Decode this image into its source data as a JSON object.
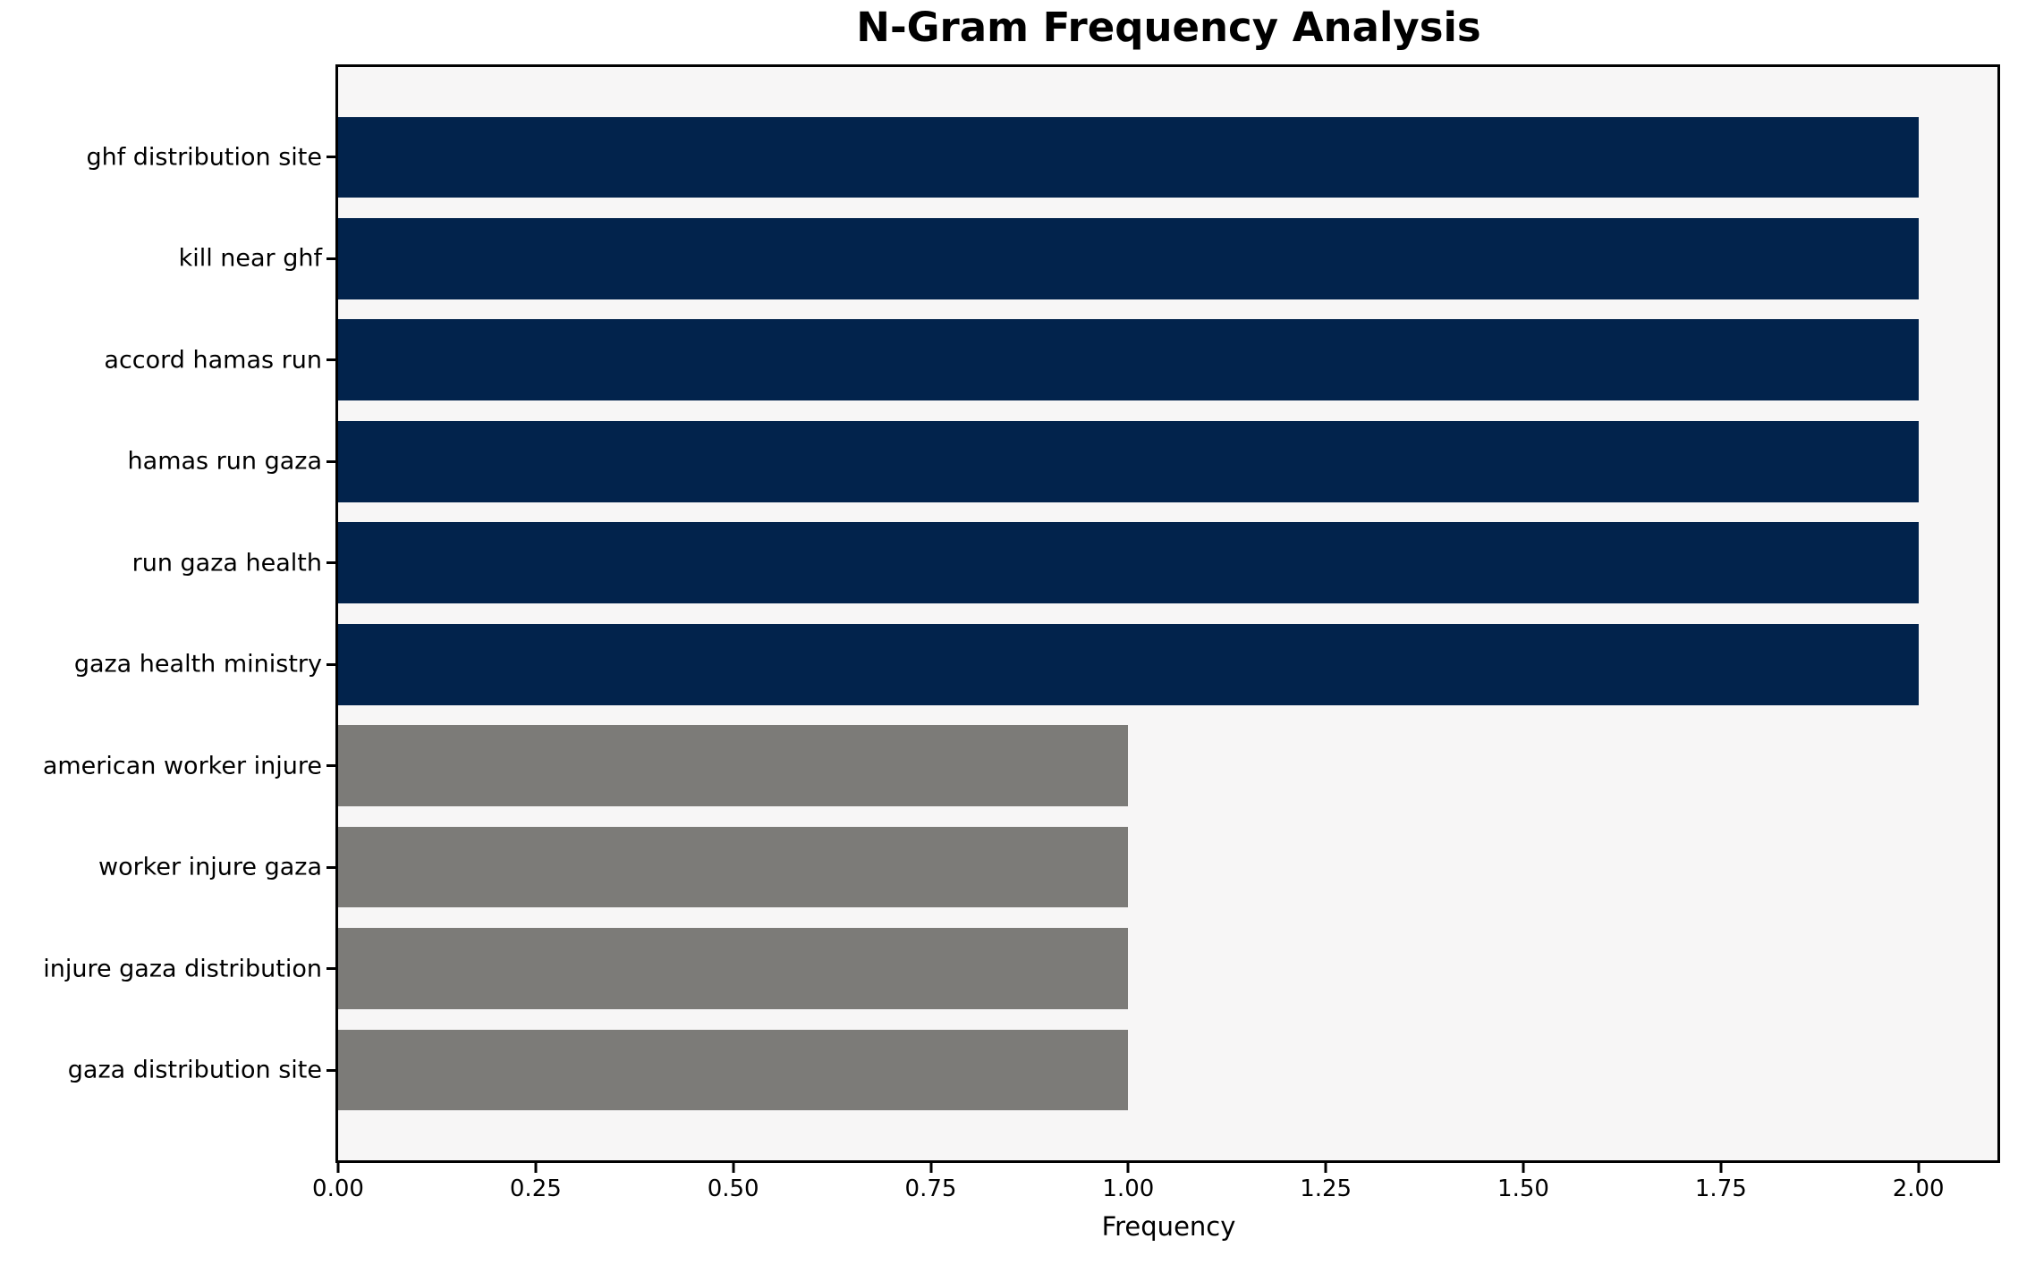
{
  "chart_data": {
    "type": "bar",
    "orientation": "horizontal",
    "title": "N-Gram Frequency Analysis",
    "xlabel": "Frequency",
    "categories": [
      "ghf distribution site",
      "kill near ghf",
      "accord hamas run",
      "hamas run gaza",
      "run gaza health",
      "gaza health ministry",
      "american worker injure",
      "worker injure gaza",
      "injure gaza distribution",
      "gaza distribution site"
    ],
    "values": [
      2,
      2,
      2,
      2,
      2,
      2,
      1,
      1,
      1,
      1
    ],
    "bar_colors": [
      "#02234c",
      "#02234c",
      "#02234c",
      "#02234c",
      "#02234c",
      "#02234c",
      "#7c7b78",
      "#7c7b78",
      "#7c7b78",
      "#7c7b78"
    ],
    "xlim": [
      0,
      2.1
    ],
    "xticks": [
      0,
      0.25,
      0.5,
      0.75,
      1.0,
      1.25,
      1.5,
      1.75,
      2.0
    ],
    "xtick_labels": [
      "0.00",
      "0.25",
      "0.50",
      "0.75",
      "1.00",
      "1.25",
      "1.50",
      "1.75",
      "2.00"
    ],
    "bar_height_fraction": 0.8,
    "grid": false,
    "legend_position": "none",
    "plot_background": "#f7f6f6",
    "figure_background": "#ffffff",
    "spine_color": "#000000"
  }
}
